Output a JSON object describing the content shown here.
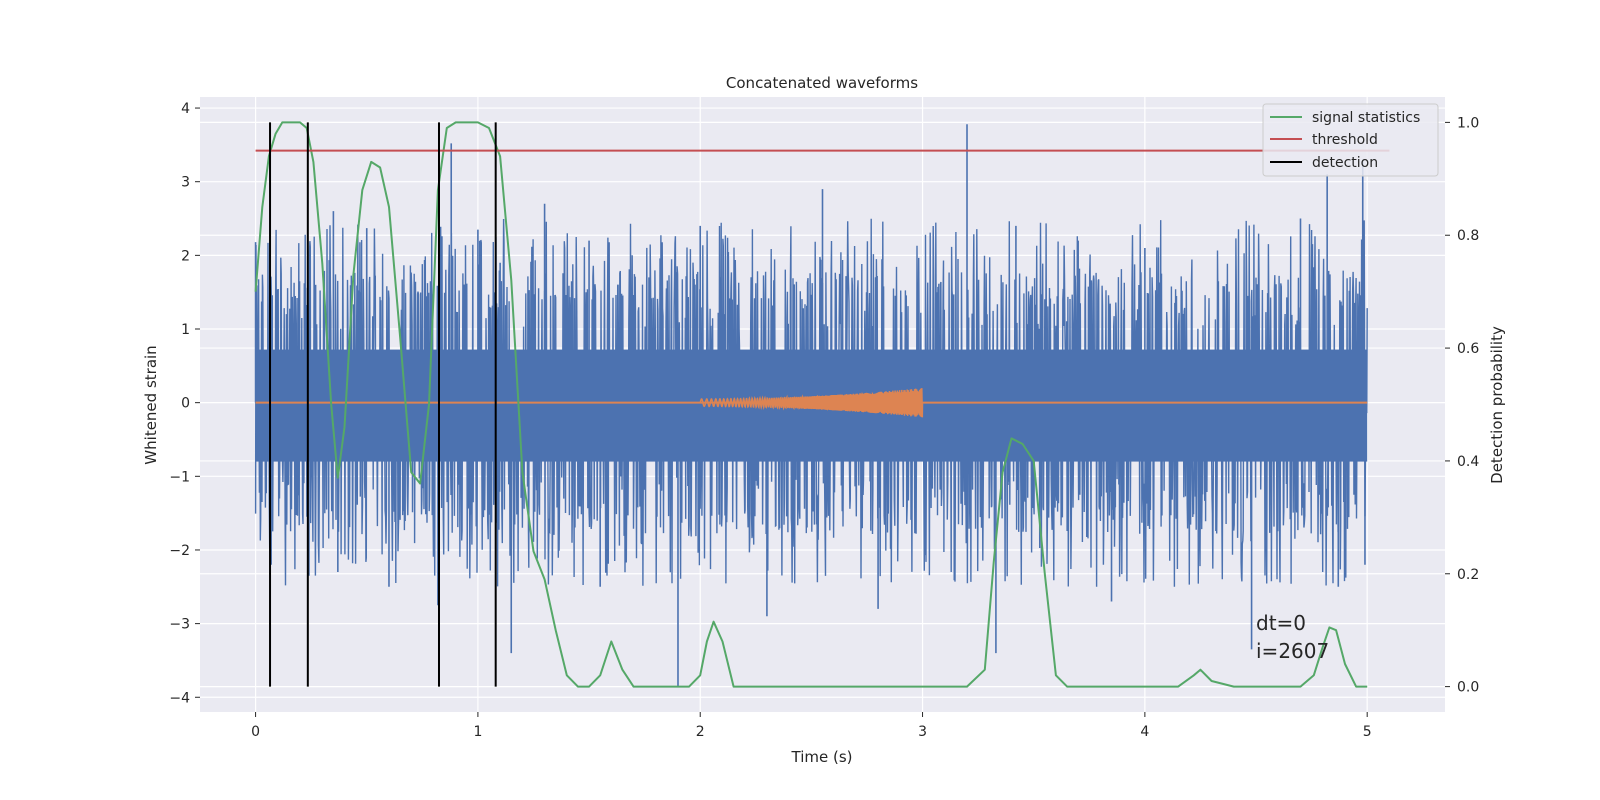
{
  "chart_data": {
    "type": "line",
    "title": "Concatenated waveforms",
    "xlabel": "Time (s)",
    "ylabel": "Whitened strain",
    "y2label": "Detection probability",
    "xlim": [
      -0.25,
      5.35
    ],
    "ylim": [
      -4.2,
      4.15
    ],
    "y2lim": [
      -0.045,
      1.045
    ],
    "xticks": [
      0,
      1,
      2,
      3,
      4,
      5
    ],
    "yticks": [
      -4,
      -3,
      -2,
      -1,
      0,
      1,
      2,
      3,
      4
    ],
    "y2ticks": [
      0.0,
      0.2,
      0.4,
      0.6,
      0.8,
      1.0
    ],
    "grid": true,
    "legend_position": "top-right",
    "colors": {
      "strain": "#4c72b0",
      "waveform": "#dd8452",
      "signal": "#55a868",
      "threshold": "#c44e52",
      "detection": "#000000",
      "plot_bg": "#eaeaf2",
      "grid": "#ffffff"
    },
    "series": [
      {
        "name": "signal statistics",
        "axis": "right",
        "x": [
          0.0,
          0.03,
          0.06,
          0.09,
          0.12,
          0.16,
          0.2,
          0.23,
          0.26,
          0.3,
          0.34,
          0.37,
          0.4,
          0.44,
          0.48,
          0.52,
          0.56,
          0.6,
          0.65,
          0.7,
          0.74,
          0.78,
          0.82,
          0.86,
          0.9,
          1.0,
          1.05,
          1.1,
          1.15,
          1.2,
          1.25,
          1.3,
          1.35,
          1.4,
          1.45,
          1.5,
          1.55,
          1.6,
          1.65,
          1.7,
          1.8,
          1.9,
          1.95,
          2.0,
          2.03,
          2.06,
          2.1,
          2.15,
          2.2,
          2.5,
          3.0,
          3.2,
          3.28,
          3.32,
          3.36,
          3.4,
          3.45,
          3.5,
          3.55,
          3.6,
          3.65,
          3.7,
          4.0,
          4.15,
          4.22,
          4.25,
          4.3,
          4.4,
          4.5,
          4.6,
          4.7,
          4.76,
          4.8,
          4.83,
          4.86,
          4.9,
          4.95,
          5.0
        ],
        "y": [
          0.7,
          0.85,
          0.94,
          0.98,
          1.0,
          1.0,
          1.0,
          0.99,
          0.93,
          0.75,
          0.5,
          0.37,
          0.46,
          0.73,
          0.88,
          0.93,
          0.92,
          0.85,
          0.62,
          0.38,
          0.36,
          0.5,
          0.88,
          0.99,
          1.0,
          1.0,
          0.99,
          0.94,
          0.72,
          0.38,
          0.24,
          0.19,
          0.1,
          0.02,
          0.0,
          0.0,
          0.02,
          0.08,
          0.03,
          0.0,
          0.0,
          0.0,
          0.0,
          0.02,
          0.08,
          0.115,
          0.08,
          0.0,
          0.0,
          0.0,
          0.0,
          0.0,
          0.03,
          0.22,
          0.38,
          0.44,
          0.43,
          0.4,
          0.2,
          0.02,
          0.0,
          0.0,
          0.0,
          0.0,
          0.02,
          0.03,
          0.01,
          0.0,
          0.0,
          0.0,
          0.0,
          0.02,
          0.07,
          0.105,
          0.1,
          0.04,
          0.0,
          0.0
        ]
      },
      {
        "name": "threshold",
        "axis": "right",
        "x": [
          0.0,
          5.1
        ],
        "y": [
          0.95,
          0.95
        ]
      },
      {
        "name": "detection",
        "axis": "right",
        "x": [
          0.065,
          0.235,
          0.825,
          1.08
        ],
        "y_range": [
          0.0,
          1.0
        ]
      }
    ],
    "strain": {
      "x_range": [
        0.0,
        5.0
      ],
      "band": [
        -0.8,
        0.72
      ],
      "outliers": [
        {
          "x": 0.0,
          "y": 2.18
        },
        {
          "x": 0.07,
          "y": -2.2
        },
        {
          "x": 0.24,
          "y": -2.35
        },
        {
          "x": 0.27,
          "y": 1.6
        },
        {
          "x": 0.35,
          "y": 2.6
        },
        {
          "x": 0.37,
          "y": -2.3
        },
        {
          "x": 0.5,
          "y": 2.37
        },
        {
          "x": 0.6,
          "y": -2.5
        },
        {
          "x": 0.82,
          "y": -2.75
        },
        {
          "x": 0.88,
          "y": 3.52
        },
        {
          "x": 1.0,
          "y": 2.35
        },
        {
          "x": 1.1,
          "y": 1.9
        },
        {
          "x": 1.15,
          "y": -3.4
        },
        {
          "x": 1.3,
          "y": 2.7
        },
        {
          "x": 1.5,
          "y": 2.2
        },
        {
          "x": 1.55,
          "y": -2.5
        },
        {
          "x": 1.9,
          "y": -3.85
        },
        {
          "x": 2.0,
          "y": 2.4
        },
        {
          "x": 2.3,
          "y": -2.9
        },
        {
          "x": 2.55,
          "y": 2.9
        },
        {
          "x": 2.8,
          "y": -2.8
        },
        {
          "x": 3.2,
          "y": 3.78
        },
        {
          "x": 3.33,
          "y": -3.4
        },
        {
          "x": 3.42,
          "y": 2.4
        },
        {
          "x": 3.7,
          "y": 2.2
        },
        {
          "x": 3.85,
          "y": -2.7
        },
        {
          "x": 4.0,
          "y": 2.1
        },
        {
          "x": 4.48,
          "y": -3.35
        },
        {
          "x": 4.7,
          "y": 2.5
        },
        {
          "x": 4.82,
          "y": 3.1
        },
        {
          "x": 4.87,
          "y": -2.5
        },
        {
          "x": 4.98,
          "y": 3.3
        },
        {
          "x": 4.99,
          "y": -2.2
        }
      ]
    },
    "waveform": {
      "x_range": [
        2.0,
        3.0
      ],
      "amplitude_start": 0.05,
      "amplitude_end": 0.2
    },
    "annotations": [
      "dt=0",
      "i=2607"
    ]
  }
}
